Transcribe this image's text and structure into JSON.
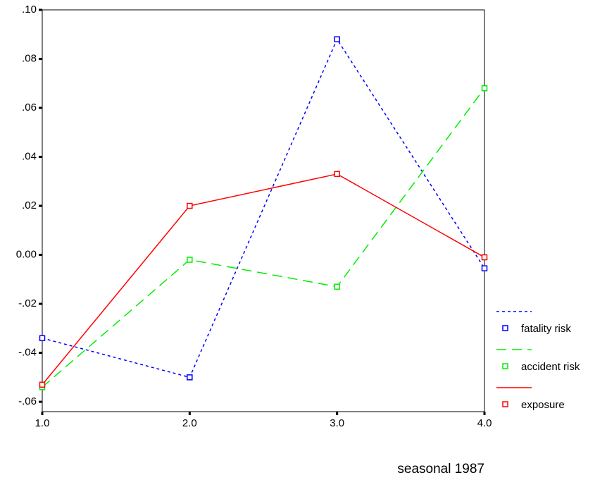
{
  "chart_data": {
    "type": "line",
    "x_label": "seasonal 1987",
    "x": [
      1,
      2,
      3,
      4
    ],
    "series": [
      {
        "name": "fatality risk",
        "color": "#0000ff",
        "dash": "4,4",
        "values": [
          -0.034,
          -0.05,
          0.088,
          -0.0055
        ]
      },
      {
        "name": "accident risk",
        "color": "#00ee00",
        "dash": "14,8",
        "values": [
          -0.054,
          -0.002,
          -0.013,
          0.068
        ]
      },
      {
        "name": "exposure",
        "color": "#ff0000",
        "dash": "none",
        "values": [
          -0.053,
          0.02,
          0.033,
          -0.001
        ]
      }
    ],
    "xlim": [
      1,
      4
    ],
    "xticks": [
      {
        "value": 1,
        "label": "1.0"
      },
      {
        "value": 2,
        "label": "2.0"
      },
      {
        "value": 3,
        "label": "3.0"
      },
      {
        "value": 4,
        "label": "4.0"
      }
    ],
    "ylim": [
      -0.064,
      0.1
    ],
    "yticks": [
      {
        "value": -0.06,
        "label": "-.06"
      },
      {
        "value": -0.04,
        "label": "-.04"
      },
      {
        "value": -0.02,
        "label": "-.02"
      },
      {
        "value": 0,
        "label": "0.00"
      },
      {
        "value": 0.02,
        "label": ".02"
      },
      {
        "value": 0.04,
        "label": ".04"
      },
      {
        "value": 0.06,
        "label": ".06"
      },
      {
        "value": 0.08,
        "label": ".08"
      },
      {
        "value": 0.1,
        "label": ".10"
      }
    ],
    "grid": false,
    "legend_position": "right"
  }
}
